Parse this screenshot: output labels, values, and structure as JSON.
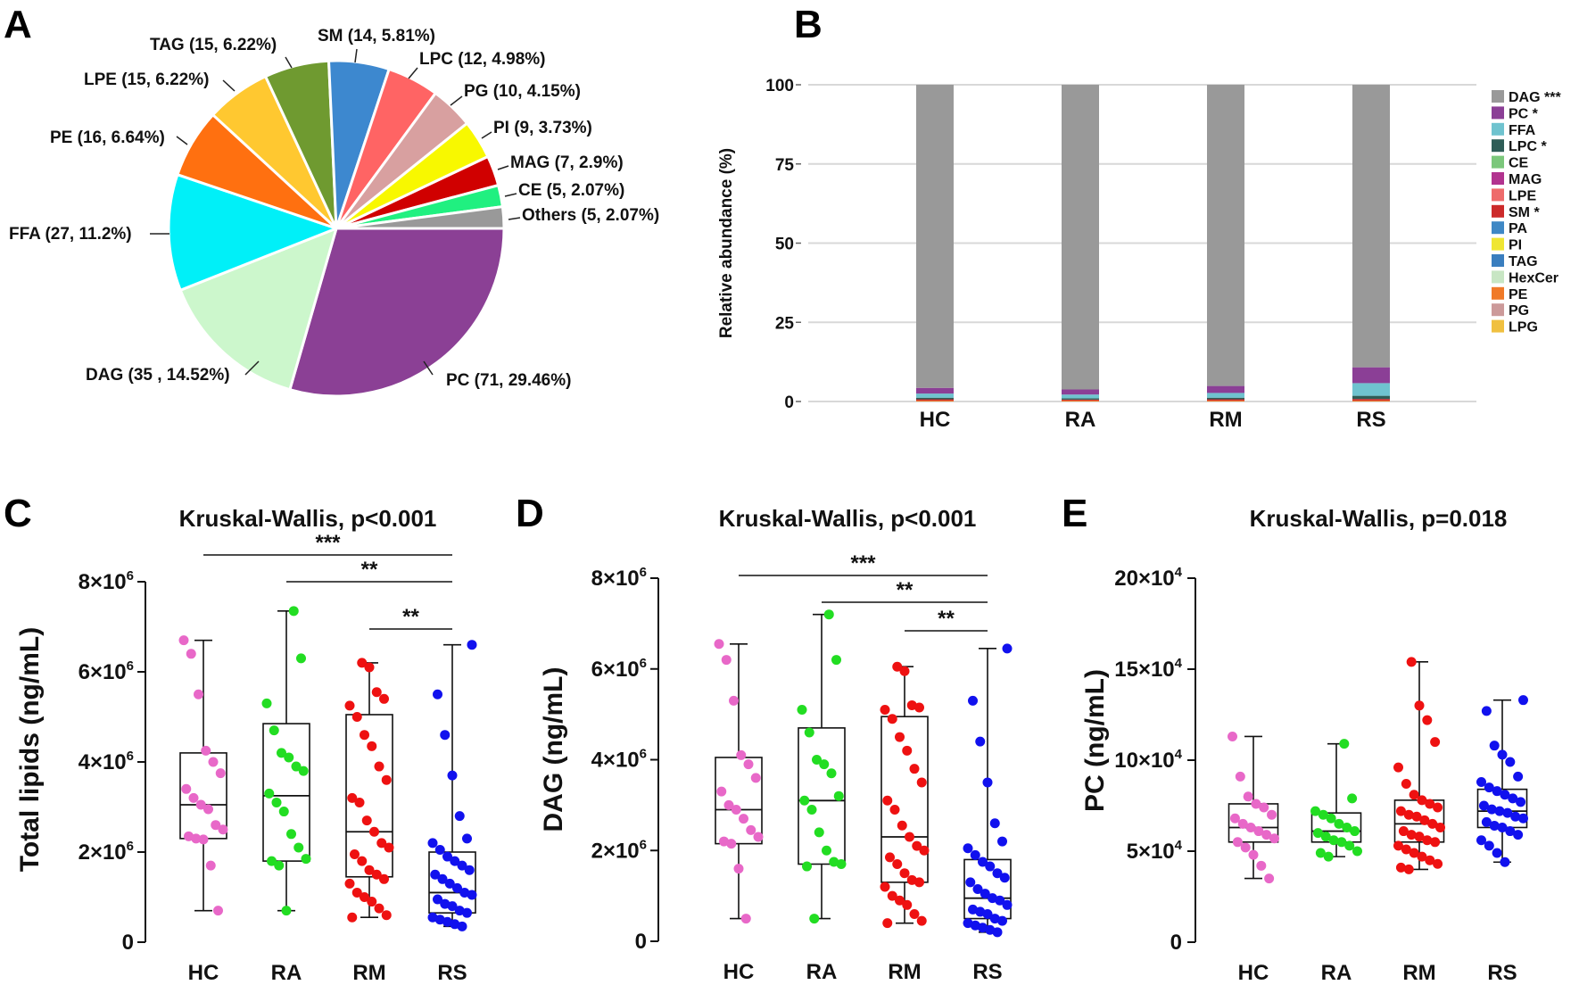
{
  "panels": {
    "a": "A",
    "b": "B",
    "c": "C",
    "d": "D",
    "e": "E"
  },
  "colors": {
    "HC": "#e868c8",
    "RA": "#22dd22",
    "RM": "#ee1111",
    "RS": "#1111ee",
    "legend": {
      "DAG ***": "#999999",
      "PC *": "#8b3f96",
      "FFA": "#6fc3cf",
      "LPC *": "#2f5d57",
      "CE": "#7bc77b",
      "MAG": "#b2338f",
      "LPE": "#ee6b6b",
      "SM *": "#cc2a2a",
      "PA": "#3f88c5",
      "PI": "#efe633",
      "TAG": "#3a7ebf",
      "HexCer": "#c8e6c4",
      "PE": "#f07a28",
      "PG": "#cc9a9a",
      "LPG": "#f0c040"
    }
  },
  "chart_data": [
    {
      "id": "A",
      "type": "pie",
      "title": "",
      "slices": [
        {
          "name": "PC",
          "count": 71,
          "pct": 29.46,
          "label": "PC (71, 29.46%)",
          "color": "#8b4095"
        },
        {
          "name": "DAG",
          "count": 35,
          "pct": 14.52,
          "label": "DAG (35 , 14.52%)",
          "color": "#ccf7cc"
        },
        {
          "name": "FFA",
          "count": 27,
          "pct": 11.2,
          "label": "FFA (27, 11.2%)",
          "color": "#00f0f8"
        },
        {
          "name": "PE",
          "count": 16,
          "pct": 6.64,
          "label": "PE (16, 6.64%)",
          "color": "#ff7010"
        },
        {
          "name": "LPE",
          "count": 15,
          "pct": 6.22,
          "label": "LPE (15, 6.22%)",
          "color": "#ffc830"
        },
        {
          "name": "TAG",
          "count": 15,
          "pct": 6.22,
          "label": "TAG (15, 6.22%)",
          "color": "#6f9a30"
        },
        {
          "name": "SM",
          "count": 14,
          "pct": 5.81,
          "label": "SM (14, 5.81%)",
          "color": "#3d88cf"
        },
        {
          "name": "LPC",
          "count": 12,
          "pct": 4.98,
          "label": "LPC (12, 4.98%)",
          "color": "#ff6464"
        },
        {
          "name": "PG",
          "count": 10,
          "pct": 4.15,
          "label": "PG (10, 4.15%)",
          "color": "#d8a0a0"
        },
        {
          "name": "PI",
          "count": 9,
          "pct": 3.73,
          "label": "PI (9, 3.73%)",
          "color": "#f8f800"
        },
        {
          "name": "MAG",
          "count": 7,
          "pct": 2.9,
          "label": "MAG (7, 2.9%)",
          "color": "#d00000"
        },
        {
          "name": "CE",
          "count": 5,
          "pct": 2.07,
          "label": "CE (5, 2.07%)",
          "color": "#20f080"
        },
        {
          "name": "Others",
          "count": 5,
          "pct": 2.07,
          "label": "Others (5, 2.07%)",
          "color": "#999999"
        }
      ]
    },
    {
      "id": "B",
      "type": "bar",
      "stacked": true,
      "ylabel": "Relative abundance (%)",
      "ylim": [
        0,
        100
      ],
      "yticks": [
        "0",
        "25",
        "50",
        "75",
        "100"
      ],
      "categories": [
        "HC",
        "RA",
        "RM",
        "RS"
      ],
      "legend": [
        "DAG ***",
        "PC *",
        "FFA",
        "LPC *",
        "CE",
        "MAG",
        "LPE",
        "SM *",
        "PA",
        "PI",
        "TAG",
        "HexCer",
        "PE",
        "PG",
        "LPG"
      ],
      "series": [
        {
          "name": "PE",
          "values": [
            0.3,
            0.3,
            0.3,
            0.3
          ]
        },
        {
          "name": "SM *",
          "values": [
            0.4,
            0.3,
            0.4,
            0.5
          ]
        },
        {
          "name": "LPC *",
          "values": [
            0.5,
            0.4,
            0.5,
            1.0
          ]
        },
        {
          "name": "FFA",
          "values": [
            1.3,
            1.2,
            1.5,
            4.0
          ]
        },
        {
          "name": "PC *",
          "values": [
            1.8,
            1.6,
            2.2,
            5.0
          ]
        },
        {
          "name": "DAG ***",
          "values": [
            95.7,
            96.2,
            95.1,
            89.2
          ]
        }
      ]
    },
    {
      "id": "C",
      "type": "scatter",
      "title": "Kruskal-Wallis, p<0.001",
      "ylabel": "Total lipids (ng/mL)",
      "ylim": [
        0,
        8
      ],
      "yticks": [
        {
          "v": 0,
          "base": "0",
          "exp": ""
        },
        {
          "v": 2,
          "base": "2×10",
          "exp": "6"
        },
        {
          "v": 4,
          "base": "4×10",
          "exp": "6"
        },
        {
          "v": 6,
          "base": "6×10",
          "exp": "6"
        },
        {
          "v": 8,
          "base": "8×10",
          "exp": "6"
        }
      ],
      "categories": [
        "HC",
        "RA",
        "RM",
        "RS"
      ],
      "groups": [
        {
          "name": "HC",
          "min": 0.7,
          "q1": 2.3,
          "median": 3.05,
          "q3": 4.2,
          "max": 6.7,
          "points": [
            6.7,
            6.4,
            5.5,
            4.25,
            4.0,
            3.75,
            3.4,
            3.2,
            3.05,
            2.95,
            2.6,
            2.5,
            2.35,
            2.3,
            2.28,
            1.7,
            0.7
          ]
        },
        {
          "name": "RA",
          "min": 0.7,
          "q1": 1.8,
          "median": 3.25,
          "q3": 4.85,
          "max": 7.35,
          "points": [
            7.35,
            6.3,
            5.3,
            4.7,
            4.2,
            4.1,
            3.9,
            3.8,
            3.3,
            3.1,
            2.9,
            2.4,
            2.1,
            1.85,
            1.8,
            1.7,
            0.7
          ]
        },
        {
          "name": "RM",
          "min": 0.55,
          "q1": 1.45,
          "median": 2.45,
          "q3": 5.05,
          "max": 6.2,
          "points": [
            6.2,
            6.1,
            5.55,
            5.4,
            5.25,
            5.0,
            4.6,
            4.35,
            3.9,
            3.6,
            3.2,
            3.1,
            2.7,
            2.45,
            2.2,
            2.1,
            1.95,
            1.8,
            1.6,
            1.5,
            1.4,
            1.3,
            1.1,
            1.0,
            0.9,
            0.75,
            0.6,
            0.55
          ]
        },
        {
          "name": "RS",
          "min": 0.35,
          "q1": 0.65,
          "median": 1.1,
          "q3": 2.0,
          "max": 6.6,
          "points": [
            6.6,
            5.5,
            4.6,
            3.7,
            2.8,
            2.3,
            2.2,
            2.05,
            1.9,
            1.8,
            1.7,
            1.6,
            1.5,
            1.4,
            1.3,
            1.2,
            1.1,
            1.05,
            0.95,
            0.85,
            0.8,
            0.7,
            0.65,
            0.55,
            0.5,
            0.45,
            0.4,
            0.35
          ]
        }
      ],
      "comparisons": [
        {
          "from": "HC",
          "to": "RS",
          "label": "***"
        },
        {
          "from": "RA",
          "to": "RS",
          "label": "**"
        },
        {
          "from": "RM",
          "to": "RS",
          "label": "**"
        }
      ]
    },
    {
      "id": "D",
      "type": "scatter",
      "title": "Kruskal-Wallis, p<0.001",
      "ylabel": "DAG (ng/mL)",
      "ylim": [
        0,
        8
      ],
      "yticks": [
        {
          "v": 0,
          "base": "0",
          "exp": ""
        },
        {
          "v": 2,
          "base": "2×10",
          "exp": "6"
        },
        {
          "v": 4,
          "base": "4×10",
          "exp": "6"
        },
        {
          "v": 6,
          "base": "6×10",
          "exp": "6"
        },
        {
          "v": 8,
          "base": "8×10",
          "exp": "6"
        }
      ],
      "categories": [
        "HC",
        "RA",
        "RM",
        "RS"
      ],
      "groups": [
        {
          "name": "HC",
          "min": 0.5,
          "q1": 2.15,
          "median": 2.9,
          "q3": 4.05,
          "max": 6.55,
          "points": [
            6.55,
            6.2,
            5.3,
            4.1,
            3.9,
            3.6,
            3.3,
            3.0,
            2.9,
            2.7,
            2.45,
            2.3,
            2.2,
            2.15,
            1.6,
            0.5
          ]
        },
        {
          "name": "RA",
          "min": 0.5,
          "q1": 1.7,
          "median": 3.1,
          "q3": 4.7,
          "max": 7.2,
          "points": [
            7.2,
            6.2,
            5.1,
            4.6,
            4.0,
            3.9,
            3.7,
            3.2,
            3.1,
            2.9,
            2.4,
            2.0,
            1.75,
            1.7,
            1.65,
            0.5
          ]
        },
        {
          "name": "RM",
          "min": 0.4,
          "q1": 1.3,
          "median": 2.3,
          "q3": 4.95,
          "max": 6.05,
          "points": [
            6.05,
            5.95,
            5.2,
            5.15,
            5.1,
            4.9,
            4.5,
            4.2,
            3.8,
            3.5,
            3.1,
            2.9,
            2.55,
            2.3,
            2.1,
            2.0,
            1.85,
            1.7,
            1.5,
            1.35,
            1.3,
            1.2,
            1.0,
            0.9,
            0.8,
            0.6,
            0.45,
            0.4
          ]
        },
        {
          "name": "RS",
          "min": 0.2,
          "q1": 0.5,
          "median": 0.95,
          "q3": 1.8,
          "max": 6.45,
          "points": [
            6.45,
            5.3,
            4.4,
            3.5,
            2.6,
            2.2,
            2.05,
            1.9,
            1.75,
            1.65,
            1.5,
            1.4,
            1.3,
            1.15,
            1.05,
            0.95,
            0.9,
            0.8,
            0.7,
            0.65,
            0.6,
            0.5,
            0.45,
            0.4,
            0.35,
            0.3,
            0.25,
            0.2
          ]
        }
      ],
      "comparisons": [
        {
          "from": "HC",
          "to": "RS",
          "label": "***"
        },
        {
          "from": "RA",
          "to": "RS",
          "label": "**"
        },
        {
          "from": "RM",
          "to": "RS",
          "label": "**"
        }
      ]
    },
    {
      "id": "E",
      "type": "scatter",
      "title": "Kruskal-Wallis, p=0.018",
      "ylabel": "PC (ng/mL)",
      "ylim": [
        0,
        20
      ],
      "yticks": [
        {
          "v": 0,
          "base": "0",
          "exp": ""
        },
        {
          "v": 5,
          "base": "5×10",
          "exp": "4"
        },
        {
          "v": 10,
          "base": "10×10",
          "exp": "4"
        },
        {
          "v": 15,
          "base": "15×10",
          "exp": "4"
        },
        {
          "v": 20,
          "base": "20×10",
          "exp": "4"
        }
      ],
      "categories": [
        "HC",
        "RA",
        "RM",
        "RS"
      ],
      "groups": [
        {
          "name": "HC",
          "min": 3.5,
          "q1": 5.5,
          "median": 6.3,
          "q3": 7.6,
          "max": 11.3,
          "points": [
            11.3,
            9.1,
            8.0,
            7.6,
            7.4,
            7.0,
            6.8,
            6.5,
            6.3,
            6.1,
            5.9,
            5.7,
            5.5,
            5.2,
            4.8,
            4.2,
            3.5
          ]
        },
        {
          "name": "RA",
          "min": 4.7,
          "q1": 5.5,
          "median": 6.1,
          "q3": 7.1,
          "max": 10.9,
          "points": [
            10.9,
            7.9,
            7.2,
            7.0,
            6.8,
            6.5,
            6.3,
            6.1,
            6.0,
            5.8,
            5.6,
            5.5,
            5.3,
            5.0,
            4.9,
            4.7
          ]
        },
        {
          "name": "RM",
          "min": 4.0,
          "q1": 5.5,
          "median": 6.5,
          "q3": 7.8,
          "max": 15.4,
          "points": [
            15.4,
            13.0,
            12.2,
            11.0,
            9.6,
            8.7,
            8.1,
            7.8,
            7.6,
            7.4,
            7.2,
            7.0,
            6.9,
            6.7,
            6.5,
            6.3,
            6.1,
            5.9,
            5.8,
            5.6,
            5.5,
            5.3,
            5.1,
            4.9,
            4.7,
            4.5,
            4.3,
            4.1,
            4.0
          ]
        },
        {
          "name": "RS",
          "min": 4.4,
          "q1": 6.3,
          "median": 7.2,
          "q3": 8.4,
          "max": 13.3,
          "points": [
            13.3,
            12.7,
            10.8,
            10.3,
            9.9,
            9.1,
            8.8,
            8.5,
            8.3,
            8.1,
            7.9,
            7.7,
            7.5,
            7.3,
            7.2,
            7.1,
            6.9,
            6.8,
            6.6,
            6.4,
            6.3,
            6.1,
            5.9,
            5.6,
            5.3,
            4.9,
            4.4
          ]
        }
      ],
      "comparisons": []
    }
  ]
}
